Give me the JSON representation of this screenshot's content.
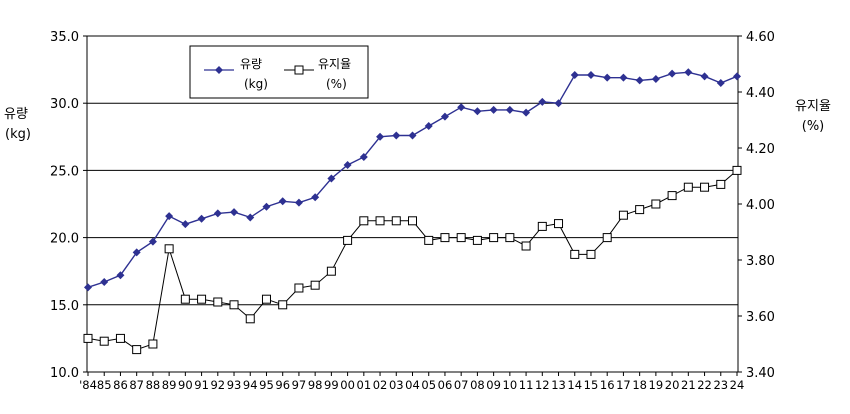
{
  "domain": "Chart",
  "chart_data": {
    "type": "line",
    "x": [
      "'84",
      "85",
      "86",
      "87",
      "88",
      "89",
      "90",
      "91",
      "92",
      "93",
      "94",
      "95",
      "96",
      "97",
      "98",
      "99",
      "00",
      "01",
      "02",
      "03",
      "04",
      "05",
      "06",
      "07",
      "08",
      "09",
      "10",
      "11",
      "12",
      "13",
      "14",
      "15",
      "16",
      "17",
      "18",
      "19",
      "20",
      "21",
      "22",
      "23",
      "24"
    ],
    "left_axis": {
      "label_line1": "유량",
      "label_line2": "(kg)",
      "range": [
        10.0,
        35.0
      ],
      "ticks": [
        "10.0",
        "15.0",
        "20.0",
        "25.0",
        "30.0",
        "35.0"
      ]
    },
    "right_axis": {
      "label_line1": "유지율",
      "label_line2": "(%)",
      "range": [
        3.4,
        4.6
      ],
      "ticks": [
        "3.40",
        "3.60",
        "3.80",
        "4.00",
        "4.20",
        "4.40",
        "4.60"
      ]
    },
    "grid": "horizontal",
    "legend_position": "top-left",
    "series": [
      {
        "name_line1": "유량",
        "name_line2": "(kg)",
        "axis": "left",
        "color": "#2e3192",
        "marker": "diamond-filled",
        "values": [
          16.3,
          16.7,
          17.2,
          18.9,
          19.7,
          21.6,
          21.0,
          21.4,
          21.8,
          21.9,
          21.5,
          22.3,
          22.7,
          22.6,
          23.0,
          24.4,
          25.4,
          26.0,
          27.5,
          27.6,
          27.6,
          28.3,
          29.0,
          29.7,
          29.4,
          29.5,
          29.5,
          29.3,
          30.1,
          30.0,
          32.1,
          32.1,
          31.9,
          31.9,
          31.7,
          31.8,
          32.2,
          32.3,
          32.0,
          31.5,
          32.0
        ]
      },
      {
        "name_line1": "유지율",
        "name_line2": "(%)",
        "axis": "right",
        "color": "#000000",
        "marker": "square-open",
        "values": [
          3.52,
          3.51,
          3.52,
          3.48,
          3.5,
          3.84,
          3.66,
          3.66,
          3.65,
          3.64,
          3.59,
          3.66,
          3.64,
          3.7,
          3.71,
          3.76,
          3.87,
          3.94,
          3.94,
          3.94,
          3.94,
          3.87,
          3.88,
          3.88,
          3.87,
          3.88,
          3.88,
          3.85,
          3.92,
          3.93,
          3.82,
          3.82,
          3.88,
          3.96,
          3.98,
          4.0,
          4.03,
          4.06,
          4.06,
          4.07,
          4.12
        ]
      }
    ]
  }
}
